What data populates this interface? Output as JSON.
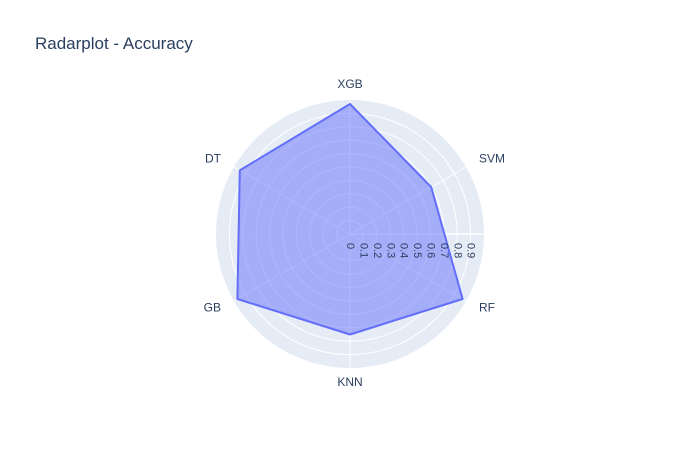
{
  "chart_data": {
    "type": "radar",
    "title": "Radarplot - Accuracy",
    "categories": [
      "XGB",
      "SVM",
      "RF",
      "KNN",
      "GB",
      "DT"
    ],
    "values": [
      0.97,
      0.7,
      0.97,
      0.75,
      0.97,
      0.95
    ],
    "radial_range": [
      0,
      1.0
    ],
    "radial_ticks": [
      "0",
      "0.1",
      "0.2",
      "0.3",
      "0.4",
      "0.5",
      "0.6",
      "0.7",
      "0.8",
      "0.9"
    ],
    "grid": true,
    "fill_color": "#636efa",
    "background_color": "#e5ecf6"
  }
}
